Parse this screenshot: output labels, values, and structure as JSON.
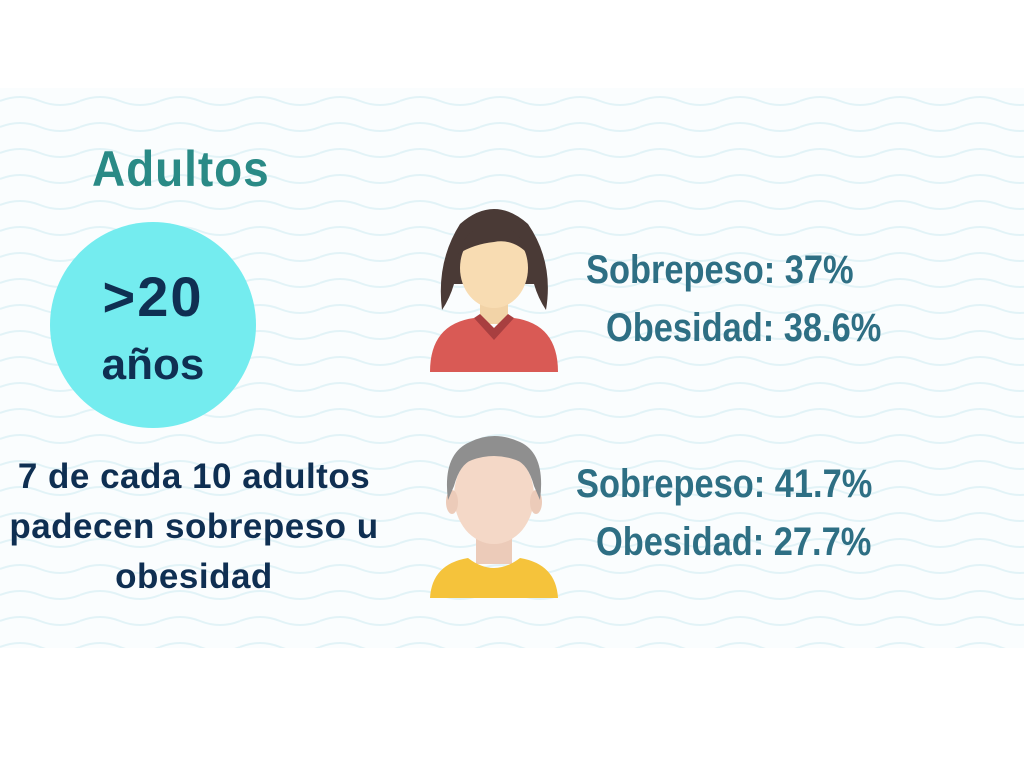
{
  "title": "Adultos",
  "age_badge": {
    "line1": ">20",
    "line2": "años"
  },
  "description": [
    "7 de cada 10 adultos",
    "padecen sobrepeso u",
    "obesidad"
  ],
  "women": {
    "overweight": "Sobrepeso: 37%",
    "obesity": "Obesidad: 38.6%",
    "icon": "woman-avatar-icon"
  },
  "men": {
    "overweight": "Sobrepeso: 41.7%",
    "obesity": "Obesidad: 27.7%",
    "icon": "man-avatar-icon"
  },
  "colors": {
    "title": "#2a8a86",
    "badge": "#74ecef",
    "dark_text": "#0f2f52",
    "stat_text": "#2e6f84"
  }
}
